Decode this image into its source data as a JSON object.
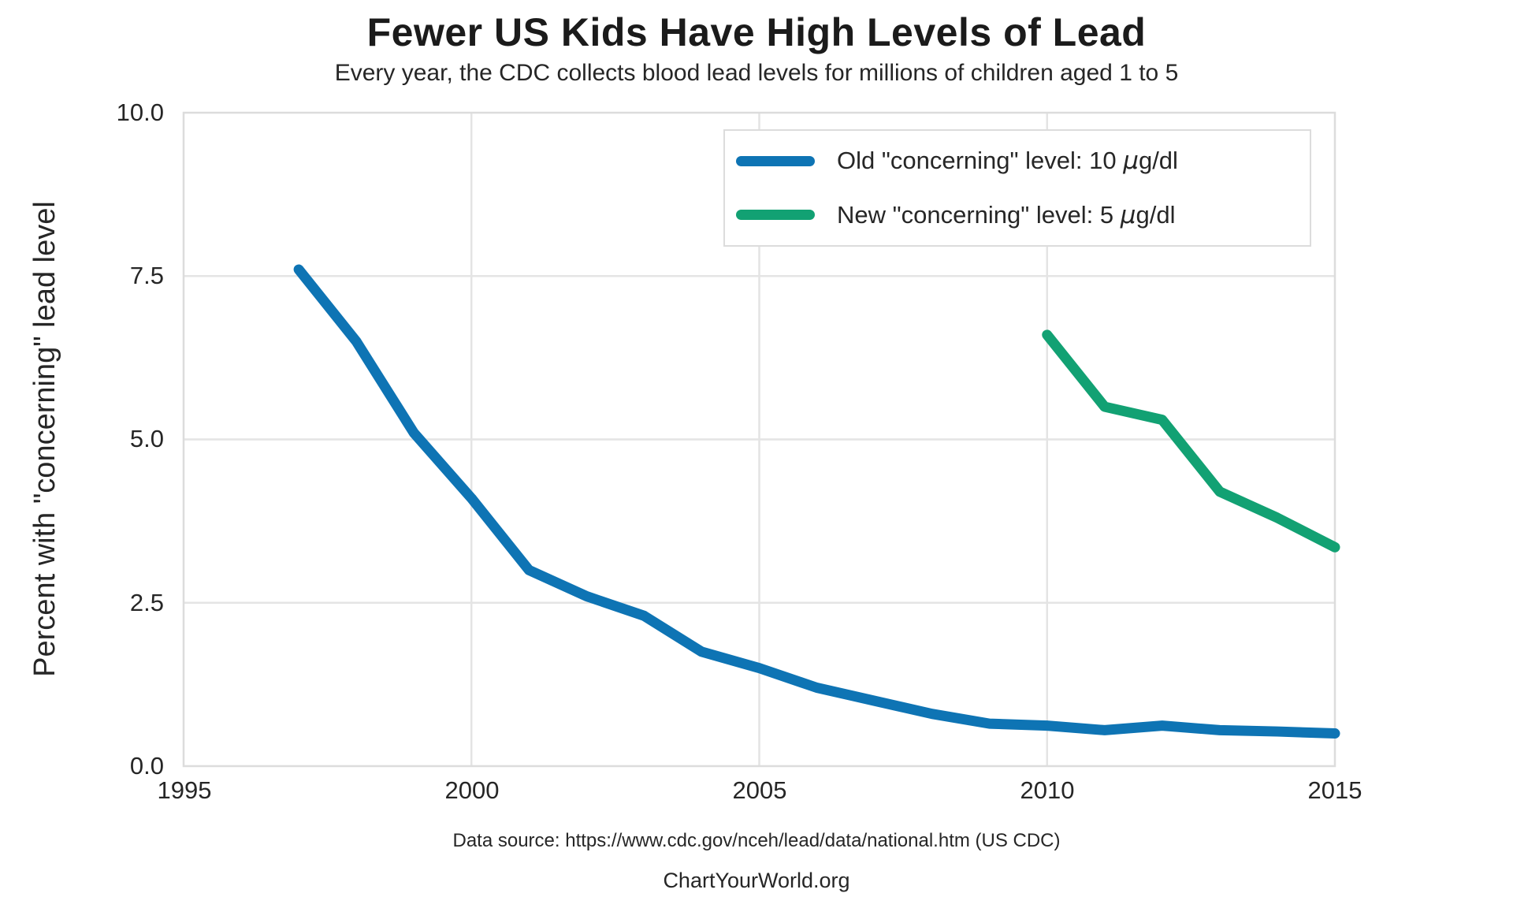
{
  "header": {
    "title": "Fewer US Kids Have High Levels of Lead",
    "subtitle": "Every year, the CDC collects blood lead levels for millions of children aged 1 to 5"
  },
  "chart_data": {
    "type": "line",
    "title": "Fewer US Kids Have High Levels of Lead",
    "subtitle": "Every year, the CDC collects blood lead levels for millions of children aged 1 to 5",
    "xlabel": "",
    "ylabel": "Percent with \"concerning\" lead level",
    "xlim": [
      1995,
      2015
    ],
    "ylim": [
      0,
      10
    ],
    "x_ticks": [
      1995,
      2000,
      2005,
      2010,
      2015
    ],
    "y_ticks": [
      0.0,
      2.5,
      5.0,
      7.5,
      10.0
    ],
    "grid": true,
    "legend_position": "upper right",
    "series": [
      {
        "name": "Old \"concerning\" level: 10 μg/dl",
        "color": "#0e74b4",
        "x": [
          1997,
          1998,
          1999,
          2000,
          2001,
          2002,
          2003,
          2004,
          2005,
          2006,
          2007,
          2008,
          2009,
          2010,
          2011,
          2012,
          2013,
          2014,
          2015
        ],
        "values": [
          7.6,
          6.5,
          5.1,
          4.1,
          3.0,
          2.6,
          2.3,
          1.75,
          1.5,
          1.2,
          1.0,
          0.8,
          0.65,
          0.62,
          0.55,
          0.62,
          0.55,
          0.53,
          0.5
        ]
      },
      {
        "name": "New \"concerning\" level: 5 μg/dl",
        "color": "#12a173",
        "x": [
          2010,
          2011,
          2012,
          2013,
          2014,
          2015
        ],
        "values": [
          6.6,
          5.5,
          5.3,
          4.2,
          3.8,
          3.35
        ]
      }
    ]
  },
  "axes": {
    "y_label": "Percent with \"concerning\" lead level",
    "y_tick_labels": [
      "10.0",
      "7.5",
      "5.0",
      "2.5",
      "0.0"
    ],
    "x_tick_labels": [
      "1995",
      "2000",
      "2005",
      "2010",
      "2015"
    ]
  },
  "legend": {
    "items": [
      {
        "prefix": "Old \"concerning\" level: 10 ",
        "mu": "μ",
        "suffix": "g/dl",
        "color": "#0e74b4"
      },
      {
        "prefix": "New \"concerning\" level: 5 ",
        "mu": "μ",
        "suffix": "g/dl",
        "color": "#12a173"
      }
    ]
  },
  "footer": {
    "source": "Data source: https://www.cdc.gov/nceh/lead/data/national.htm (US CDC)",
    "branding": "ChartYourWorld.org"
  },
  "colors": {
    "old_level_line": "#0e74b4",
    "new_level_line": "#12a173",
    "gridline": "#e4e4e4",
    "frame": "#dcdcdc",
    "text": "#262626"
  }
}
